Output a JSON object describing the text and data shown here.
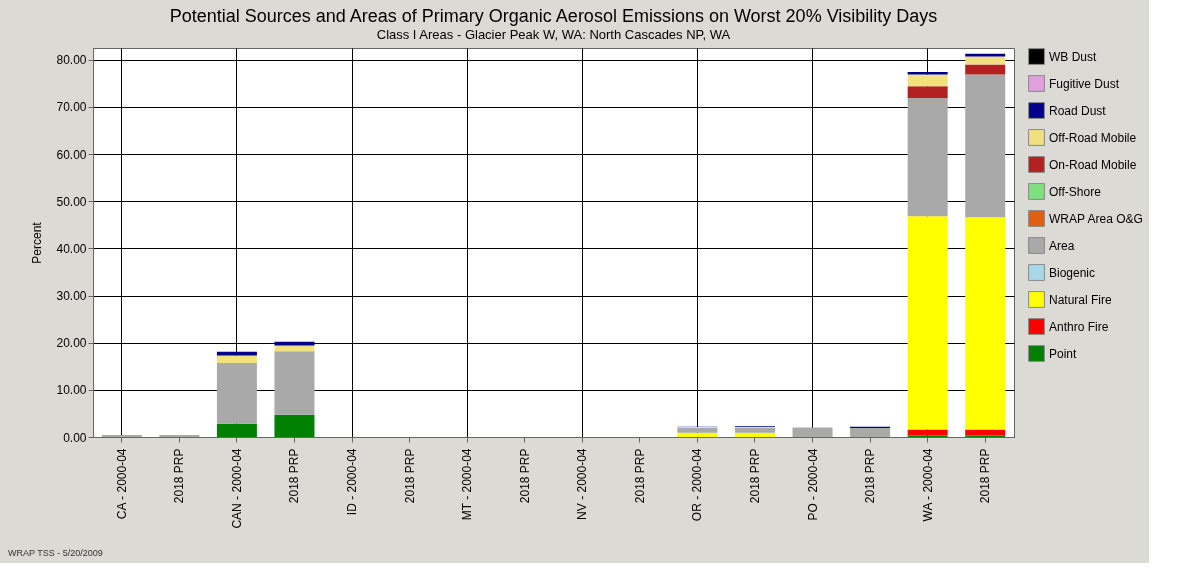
{
  "chart_data": {
    "type": "bar",
    "stacked": true,
    "title": "Potential Sources and Areas of Primary Organic Aerosol Emissions on Worst 20% Visibility Days",
    "subtitle": "Class I Areas - Glacier Peak W, WA: North Cascades NP, WA",
    "ylabel": "Percent",
    "categories": [
      "CA - 2000-04",
      "2018 PRP",
      "CAN - 2000-04",
      "2018 PRP",
      "ID - 2000-04",
      "2018 PRP",
      "MT - 2000-04",
      "2018 PRP",
      "NV - 2000-04",
      "2018 PRP",
      "OR - 2000-04",
      "2018 PRP",
      "PO - 2000-04",
      "2018 PRP",
      "WA - 2000-04",
      "2018 PRP"
    ],
    "ylim": [
      0,
      82.5
    ],
    "yticks": [
      {
        "value": 0,
        "label": "0.00"
      },
      {
        "value": 10,
        "label": "10.00"
      },
      {
        "value": 20,
        "label": "20.00"
      },
      {
        "value": 30,
        "label": "30.00"
      },
      {
        "value": 40,
        "label": "40.00"
      },
      {
        "value": 50,
        "label": "50.00"
      },
      {
        "value": 60,
        "label": "60.00"
      },
      {
        "value": 70,
        "label": "70.00"
      },
      {
        "value": 80,
        "label": "80.00"
      }
    ],
    "grid": true,
    "legend": "right",
    "annotations": [
      "WRAP TSS - 5/20/2009"
    ],
    "series": [
      {
        "name": "Point",
        "color": "#008000",
        "values": [
          0,
          0,
          2.8,
          4.7,
          0,
          0,
          0,
          0,
          0,
          0,
          null,
          null,
          0,
          0,
          0.3,
          0.3
        ]
      },
      {
        "name": "Anthro Fire",
        "color": "#ff0000",
        "values": [
          0,
          0,
          0,
          0,
          0,
          0,
          0,
          0,
          0,
          0,
          0,
          0,
          0,
          0,
          1.3,
          1.3
        ]
      },
      {
        "name": "Natural Fire",
        "color": "#ffff00",
        "values": [
          0,
          0,
          0,
          0,
          0,
          0,
          0,
          0,
          0,
          0,
          0.9,
          0.9,
          0,
          0,
          45.2,
          45.0
        ]
      },
      {
        "name": "Biogenic",
        "color": "#a8d8e8",
        "values": [
          0,
          0,
          0,
          0,
          0,
          0,
          0,
          0,
          0,
          0,
          0,
          0,
          0,
          0,
          0,
          0
        ]
      },
      {
        "name": "Area",
        "color": "#a9a9a9",
        "values": [
          0.4,
          0.4,
          12.9,
          13.5,
          0,
          0,
          0,
          0,
          0,
          0,
          1.0,
          1.0,
          2.0,
          1.9,
          25.1,
          30.3
        ]
      },
      {
        "name": "WRAP Area O&G",
        "color": "#e06010",
        "values": [
          0,
          0,
          0,
          0,
          0,
          0,
          0,
          0,
          0,
          0,
          0,
          0,
          0,
          0,
          0,
          0
        ]
      },
      {
        "name": "Off-Shore",
        "color": "#80e080",
        "values": [
          0,
          0,
          0,
          0,
          0,
          0,
          0,
          0,
          0,
          0,
          0,
          0,
          0,
          0,
          0,
          0
        ]
      },
      {
        "name": "On-Road Mobile",
        "color": "#b22222",
        "values": [
          0,
          0,
          0,
          0,
          0,
          0,
          0,
          0,
          0,
          0,
          0,
          0,
          0,
          0,
          2.5,
          2.1
        ]
      },
      {
        "name": "Off-Road Mobile",
        "color": "#f0e080",
        "values": [
          0,
          0,
          1.6,
          1.2,
          0,
          0,
          0,
          0,
          0,
          0,
          0.2,
          0.2,
          0,
          0,
          2.5,
          1.7
        ]
      },
      {
        "name": "Road Dust",
        "color": "#00008b",
        "values": [
          null,
          null,
          0.8,
          0.8,
          0,
          0,
          0,
          0,
          0,
          0,
          0.1,
          0.2,
          0,
          0.3,
          0.5,
          0.6
        ]
      },
      {
        "name": "Fugitive Dust",
        "color": "#e0a0e0",
        "values": [
          0,
          0,
          0,
          0,
          0,
          0,
          0,
          0,
          0,
          0,
          0,
          0,
          0,
          0,
          0,
          0
        ]
      },
      {
        "name": "WB Dust",
        "color": "#000000",
        "values": [
          0,
          0,
          0,
          0,
          0,
          0,
          0,
          0,
          0,
          0,
          0,
          0,
          0,
          0,
          0,
          0
        ]
      }
    ]
  }
}
